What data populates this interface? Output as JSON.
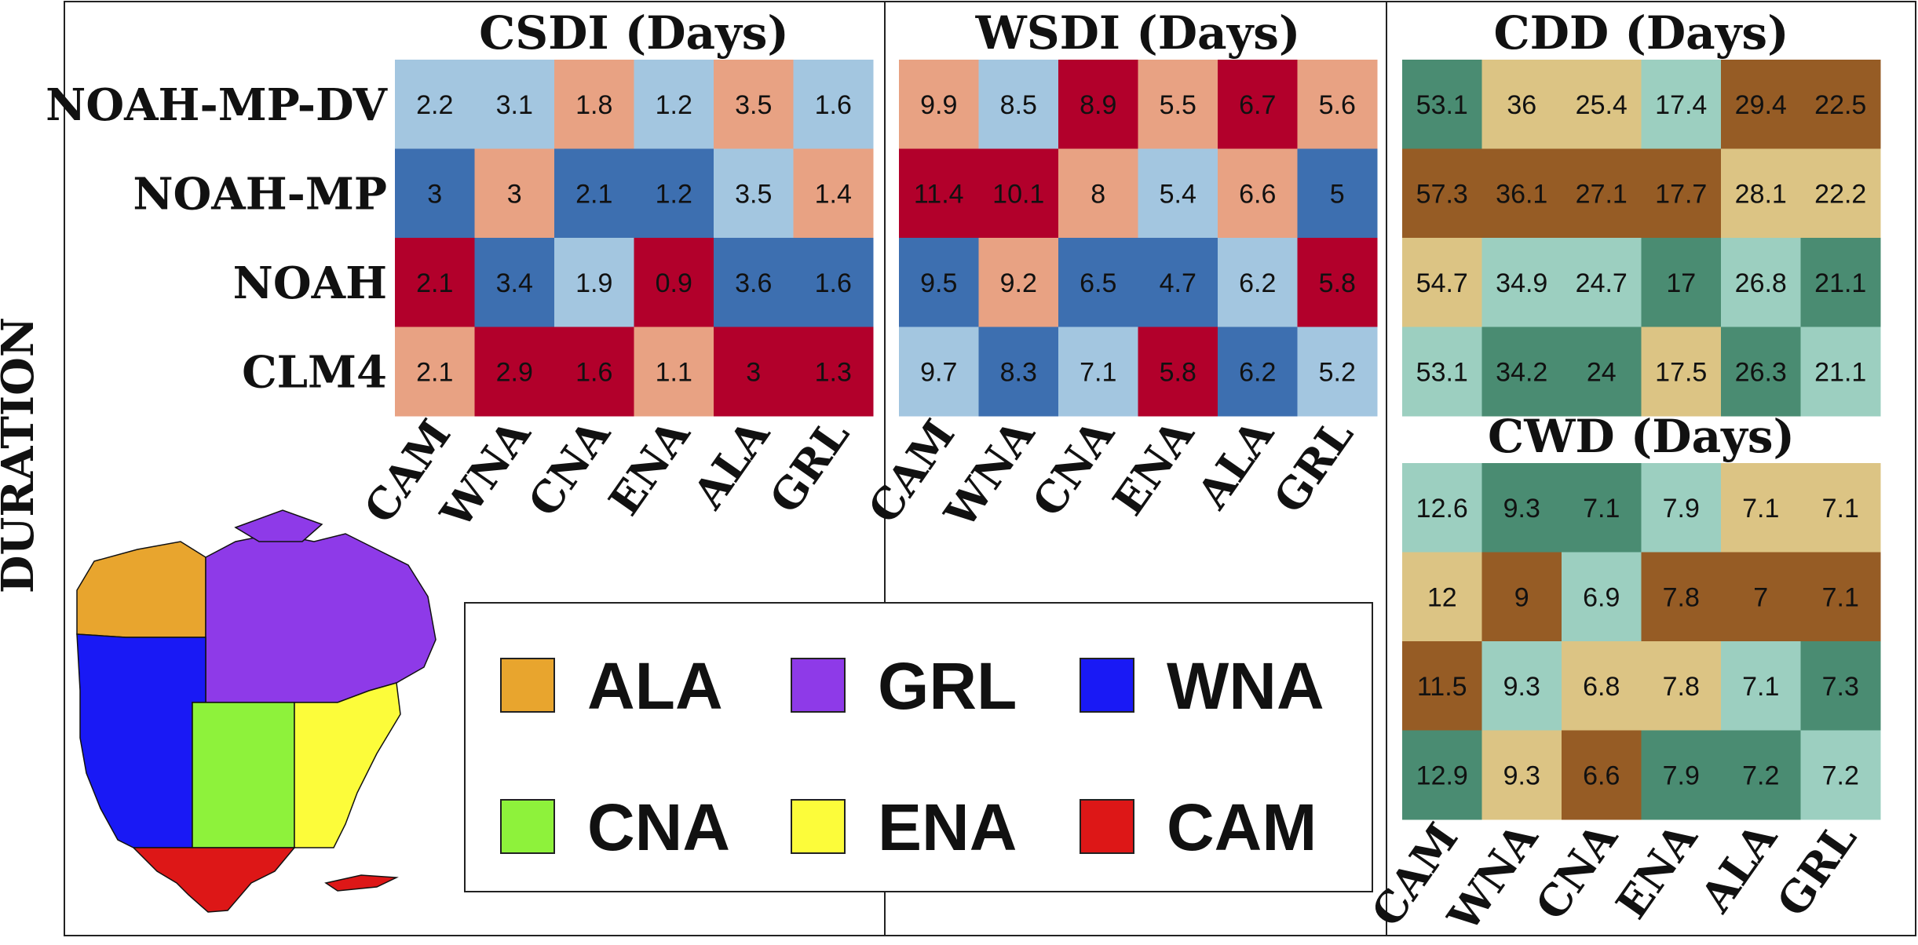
{
  "side_label": "DURATION",
  "chart_data": [
    {
      "type": "heatmap",
      "title": "CSDI (Days)",
      "rows": [
        "NOAH-MP-DV",
        "NOAH-MP",
        "NOAH",
        "CLM4"
      ],
      "categories": [
        "CAM",
        "WNA",
        "CNA",
        "ENA",
        "ALA",
        "GRL"
      ],
      "values": [
        [
          2.2,
          3.1,
          1.8,
          1.2,
          3.5,
          1.6
        ],
        [
          3,
          3,
          2.1,
          1.2,
          3.5,
          1.4
        ],
        [
          2.1,
          3.4,
          1.9,
          0.9,
          3.6,
          1.6
        ],
        [
          2.1,
          2.9,
          1.6,
          1.1,
          3,
          1.3
        ]
      ],
      "colors": [
        [
          "#a3c6e0",
          "#a3c6e0",
          "#e8a283",
          "#a3c6e0",
          "#e8a283",
          "#a3c6e0"
        ],
        [
          "#3d6fb0",
          "#e8a283",
          "#3d6fb0",
          "#3d6fb0",
          "#a3c6e0",
          "#e8a283"
        ],
        [
          "#b2002b",
          "#3d6fb0",
          "#a3c6e0",
          "#b2002b",
          "#3d6fb0",
          "#3d6fb0"
        ],
        [
          "#e8a283",
          "#b2002b",
          "#b2002b",
          "#e8a283",
          "#b2002b",
          "#b2002b"
        ]
      ]
    },
    {
      "type": "heatmap",
      "title": "WSDI (Days)",
      "rows": [
        "NOAH-MP-DV",
        "NOAH-MP",
        "NOAH",
        "CLM4"
      ],
      "categories": [
        "CAM",
        "WNA",
        "CNA",
        "ENA",
        "ALA",
        "GRL"
      ],
      "values": [
        [
          9.9,
          8.5,
          8.9,
          5.5,
          6.7,
          5.6
        ],
        [
          11.4,
          10.1,
          8,
          5.4,
          6.6,
          5
        ],
        [
          9.5,
          9.2,
          6.5,
          4.7,
          6.2,
          5.8
        ],
        [
          9.7,
          8.3,
          7.1,
          5.8,
          6.2,
          5.2
        ]
      ],
      "colors": [
        [
          "#e8a283",
          "#a3c6e0",
          "#b2002b",
          "#e8a283",
          "#b2002b",
          "#e8a283"
        ],
        [
          "#b2002b",
          "#b2002b",
          "#e8a283",
          "#a3c6e0",
          "#e8a283",
          "#3d6fb0"
        ],
        [
          "#3d6fb0",
          "#e8a283",
          "#3d6fb0",
          "#3d6fb0",
          "#a3c6e0",
          "#b2002b"
        ],
        [
          "#a3c6e0",
          "#3d6fb0",
          "#a3c6e0",
          "#b2002b",
          "#3d6fb0",
          "#a3c6e0"
        ]
      ]
    },
    {
      "type": "heatmap",
      "title": "CDD (Days)",
      "rows": [
        "NOAH-MP-DV",
        "NOAH-MP",
        "NOAH",
        "CLM4"
      ],
      "categories": [
        "CAM",
        "WNA",
        "CNA",
        "ENA",
        "ALA",
        "GRL"
      ],
      "values": [
        [
          53.1,
          36,
          25.4,
          17.4,
          29.4,
          22.5
        ],
        [
          57.3,
          36.1,
          27.1,
          17.7,
          28.1,
          22.2
        ],
        [
          54.7,
          34.9,
          24.7,
          17,
          26.8,
          21.1
        ],
        [
          53.1,
          34.2,
          24,
          17.5,
          26.3,
          21.1
        ]
      ],
      "colors": [
        [
          "#4a8c72",
          "#dcc484",
          "#dcc484",
          "#9ccfc0",
          "#965c25",
          "#965c25"
        ],
        [
          "#965c25",
          "#965c25",
          "#965c25",
          "#965c25",
          "#dcc484",
          "#dcc484"
        ],
        [
          "#dcc484",
          "#9ccfc0",
          "#9ccfc0",
          "#4a8c72",
          "#9ccfc0",
          "#4a8c72"
        ],
        [
          "#9ccfc0",
          "#4a8c72",
          "#4a8c72",
          "#dcc484",
          "#4a8c72",
          "#9ccfc0"
        ]
      ]
    },
    {
      "type": "heatmap",
      "title": "CWD (Days)",
      "rows": [
        "NOAH-MP-DV",
        "NOAH-MP",
        "NOAH",
        "CLM4"
      ],
      "categories": [
        "CAM",
        "WNA",
        "CNA",
        "ENA",
        "ALA",
        "GRL"
      ],
      "values": [
        [
          12.6,
          9.3,
          7.1,
          7.9,
          7.1,
          7.1
        ],
        [
          12,
          9,
          6.9,
          7.8,
          7,
          7.1
        ],
        [
          11.5,
          9.3,
          6.8,
          7.8,
          7.1,
          7.3
        ],
        [
          12.9,
          9.3,
          6.6,
          7.9,
          7.2,
          7.2
        ]
      ],
      "colors": [
        [
          "#9ccfc0",
          "#4a8c72",
          "#4a8c72",
          "#9ccfc0",
          "#dcc484",
          "#dcc484"
        ],
        [
          "#dcc484",
          "#965c25",
          "#9ccfc0",
          "#965c25",
          "#965c25",
          "#965c25"
        ],
        [
          "#965c25",
          "#9ccfc0",
          "#dcc484",
          "#dcc484",
          "#9ccfc0",
          "#4a8c72"
        ],
        [
          "#4a8c72",
          "#dcc484",
          "#965c25",
          "#4a8c72",
          "#4a8c72",
          "#9ccfc0"
        ]
      ]
    }
  ],
  "legend": {
    "items": [
      {
        "label": "ALA",
        "color": "#e8a52e"
      },
      {
        "label": "GRL",
        "color": "#8e3ae8"
      },
      {
        "label": "WNA",
        "color": "#1919f5"
      },
      {
        "label": "CNA",
        "color": "#8ef23b"
      },
      {
        "label": "ENA",
        "color": "#fcfc3a"
      },
      {
        "label": "CAM",
        "color": "#dd1717"
      }
    ]
  },
  "map": {
    "regions": [
      {
        "name": "ALA",
        "color": "#e8a52e"
      },
      {
        "name": "GRL",
        "color": "#8e3ae8"
      },
      {
        "name": "WNA",
        "color": "#1919f5"
      },
      {
        "name": "CNA",
        "color": "#8ef23b"
      },
      {
        "name": "ENA",
        "color": "#fcfc3a"
      },
      {
        "name": "CAM",
        "color": "#dd1717"
      }
    ]
  }
}
